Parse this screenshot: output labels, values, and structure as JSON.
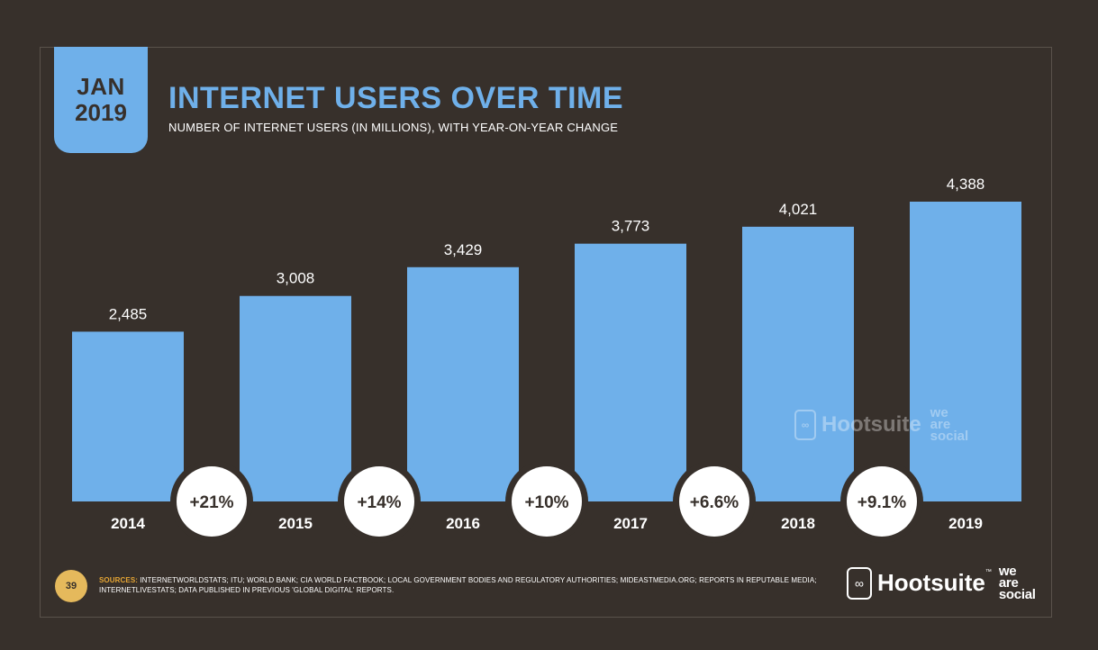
{
  "header": {
    "date_month": "JAN",
    "date_year": "2019",
    "title": "INTERNET USERS OVER TIME",
    "subtitle": "NUMBER OF INTERNET USERS (IN MILLIONS), WITH YEAR-ON-YEAR CHANGE"
  },
  "colors": {
    "background": "#37302b",
    "bar": "#6fb0ea",
    "accent": "#e5a534",
    "text": "#ffffff"
  },
  "chart_data": {
    "type": "bar",
    "title": "INTERNET USERS OVER TIME",
    "subtitle": "NUMBER OF INTERNET USERS (IN MILLIONS), WITH YEAR-ON-YEAR CHANGE",
    "categories": [
      "2014",
      "2015",
      "2016",
      "2017",
      "2018",
      "2019"
    ],
    "values": [
      2485,
      3008,
      3429,
      3773,
      4021,
      4388
    ],
    "value_labels": [
      "2,485",
      "3,008",
      "3,429",
      "3,773",
      "4,021",
      "4,388"
    ],
    "changes": [
      "+21%",
      "+14%",
      "+10%",
      "+6.6%",
      "+9.1%"
    ],
    "xlabel": "",
    "ylabel": "",
    "ylim": [
      0,
      4800
    ],
    "grid": false,
    "legend": "none"
  },
  "watermark": {
    "brand": "Hootsuite",
    "partner_line1": "we",
    "partner_line2": "are",
    "partner_line3": "social"
  },
  "footer": {
    "page_number": "39",
    "sources_label": "SOURCES:",
    "sources_text": "INTERNETWORLDSTATS; ITU; WORLD BANK; CIA WORLD FACTBOOK; LOCAL GOVERNMENT BODIES AND REGULATORY AUTHORITIES; MIDEASTMEDIA.ORG; REPORTS IN REPUTABLE MEDIA; INTERNETLIVESTATS; DATA PUBLISHED IN PREVIOUS 'GLOBAL DIGITAL' REPORTS.",
    "brand": "Hootsuite",
    "brand_tm": "™",
    "partner_line1": "we",
    "partner_line2": "are",
    "partner_line3": "social"
  }
}
